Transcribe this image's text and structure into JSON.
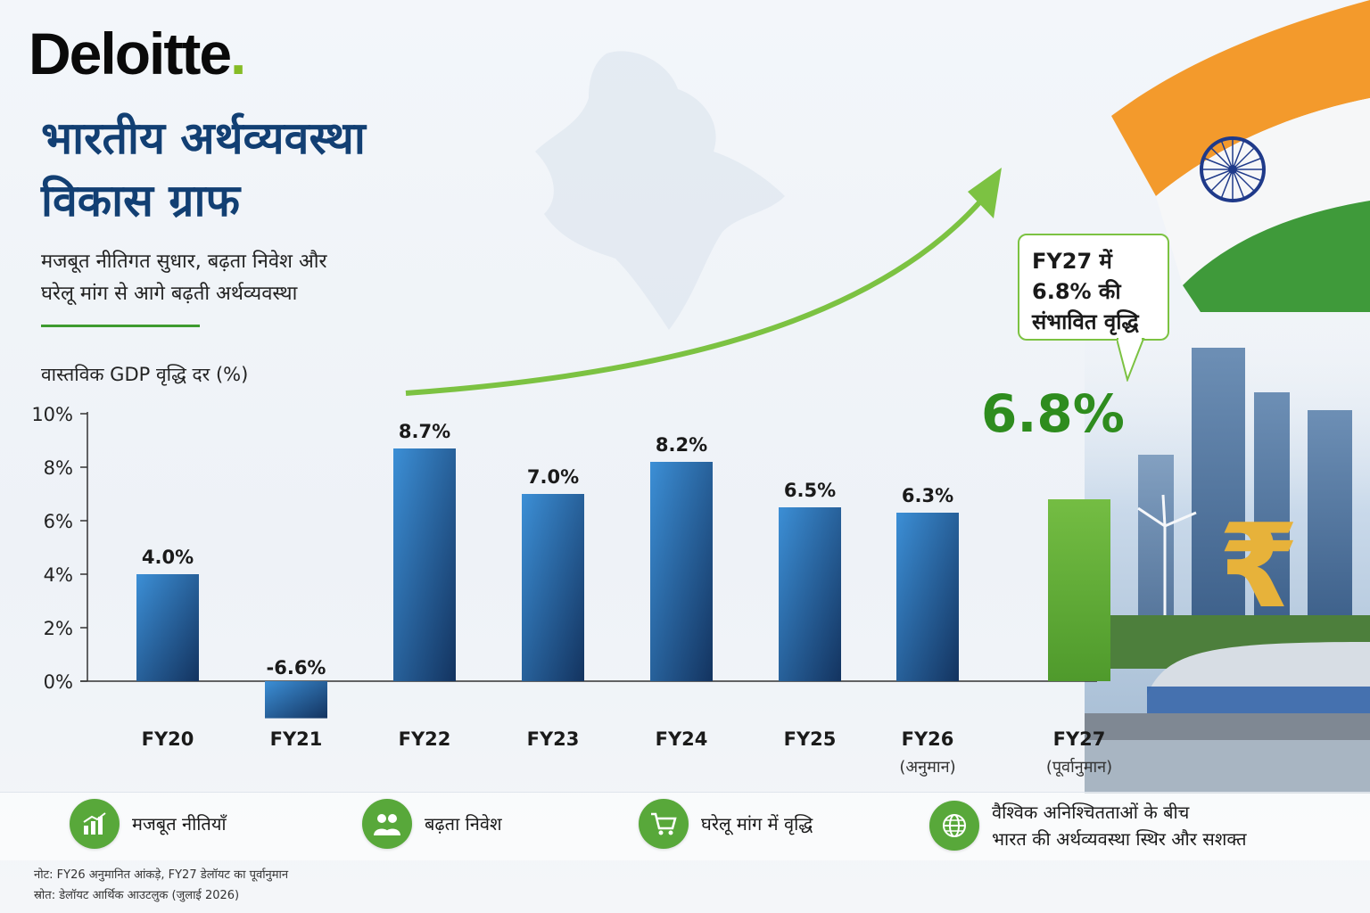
{
  "brand": {
    "name": "Deloitte",
    "dot": "."
  },
  "title": "भारतीय अर्थव्यवस्था\nविकास ग्राफ",
  "subtitle": "मजबूत नीतिगत सुधार, बढ़ता निवेश और\nघरेलू मांग से आगे बढ़ती अर्थव्यवस्था",
  "callout": {
    "text": "FY27 में\n6.8% की\nसंभावित वृद्धि"
  },
  "highlight_value": "6.8%",
  "colors": {
    "title": "#123f73",
    "accent_green": "#86bc25",
    "highlight_bar": "#6fb83f",
    "bar_dark": "#13335f",
    "bar_light": "#3c8fd6"
  },
  "chart_data": {
    "type": "bar",
    "ylabel": "वास्तविक GDP वृद्धि दर (%)",
    "ylim": [
      0,
      10
    ],
    "yticks": [
      {
        "value": 0,
        "label": "0%"
      },
      {
        "value": 2,
        "label": "2%"
      },
      {
        "value": 4,
        "label": "4%"
      },
      {
        "value": 6,
        "label": "6%"
      },
      {
        "value": 8,
        "label": "8%"
      },
      {
        "value": 10,
        "label": "10%"
      }
    ],
    "categories": [
      "FY20",
      "FY21",
      "FY22",
      "FY23",
      "FY24",
      "FY25",
      "FY26",
      "FY27"
    ],
    "category_notes": [
      "",
      "",
      "",
      "",
      "",
      "",
      "(अनुमान)",
      "(पूर्वानुमान)"
    ],
    "values": [
      4.0,
      -6.6,
      8.7,
      7.0,
      8.2,
      6.5,
      6.3,
      6.8
    ],
    "value_labels": [
      "4.0%",
      "-6.6%",
      "8.7%",
      "7.0%",
      "8.2%",
      "6.5%",
      "6.3%",
      ""
    ],
    "highlight_index": 7,
    "grid": false
  },
  "features": [
    {
      "label": "मजबूत नीतियाँ",
      "icon": "bar-chart-icon"
    },
    {
      "label": "बढ़ता निवेश",
      "icon": "people-icon"
    },
    {
      "label": "घरेलू मांग में वृद्धि",
      "icon": "cart-icon"
    },
    {
      "label": "वैश्विक अनिश्चितताओं के बीच\nभारत की अर्थव्यवस्था स्थिर और सशक्त",
      "icon": "globe-icon"
    }
  ],
  "notes": {
    "note": "नोट: FY26 अनुमानित आंकड़े, FY27 डेलॉयट का पूर्वानुमान",
    "source": "स्रोत: डेलॉयट आर्थिक आउटलुक (जुलाई 2026)"
  },
  "decor": {
    "flag_icon": "indian-flag-icon",
    "chakra_icon": "ashoka-chakra-icon",
    "rupee_symbol": "₹"
  }
}
